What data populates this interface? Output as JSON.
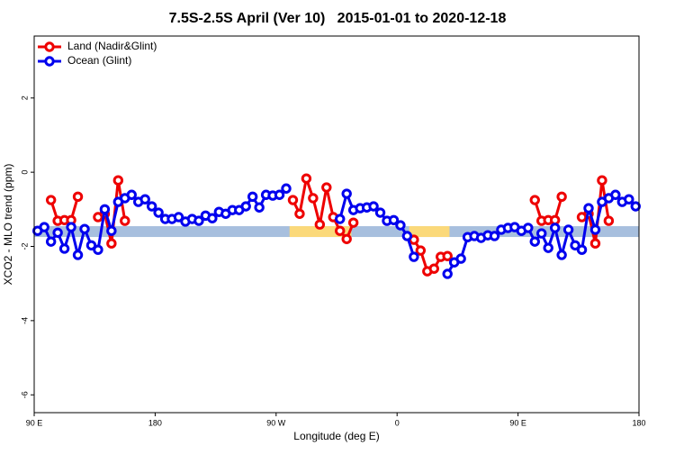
{
  "chart_data": {
    "type": "line",
    "title": "7.5S-2.5S April (Ver 10)   2015-01-01 to 2020-12-18",
    "x_label": "Longitude (deg E)",
    "y_label": "XCO2 - MLO trend (ppm)",
    "xlim": [
      90,
      540
    ],
    "ylim": [
      -6.48,
      3.67
    ],
    "xticks": [
      {
        "value": 90,
        "label": "90 E"
      },
      180,
      {
        "value": 270,
        "label": "90 W"
      },
      {
        "value": 360,
        "label": "0"
      },
      {
        "value": 450,
        "label": "90 E"
      },
      {
        "value": 540,
        "label": "180"
      }
    ],
    "yticks": [
      -6,
      -4,
      -2,
      0,
      2
    ],
    "legend": "top-left",
    "band_y": -1.6,
    "band_segments": [
      {
        "from": 90,
        "to": 540,
        "color": "#a7bfde"
      },
      {
        "from": 280,
        "to": 326,
        "color": "#fbd97a"
      },
      {
        "from": 369,
        "to": 399,
        "color": "#fbd97a"
      }
    ],
    "x": [
      92.5,
      97.5,
      102.5,
      107.5,
      112.5,
      117.5,
      122.5,
      127.5,
      132.5,
      137.5,
      142.5,
      147.5,
      152.5,
      157.5,
      162.5,
      167.5,
      172.5,
      177.5,
      182.5,
      187.5,
      192.5,
      197.5,
      202.5,
      207.5,
      212.5,
      217.5,
      222.5,
      227.5,
      232.5,
      237.5,
      242.5,
      247.5,
      252.5,
      257.5,
      262.5,
      267.5,
      272.5,
      277.5,
      282.5,
      287.5,
      292.5,
      297.5,
      302.5,
      307.5,
      312.5,
      317.5,
      322.5,
      327.5,
      332.5,
      337.5,
      342.5,
      347.5,
      352.5,
      357.5,
      362.5,
      367.5,
      372.5,
      377.5,
      382.5,
      387.5,
      392.5,
      397.5,
      402.5,
      407.5,
      412.5,
      417.5,
      422.5,
      427.5,
      432.5,
      437.5,
      442.5,
      447.5,
      452.5,
      457.5,
      462.5,
      467.5,
      472.5,
      477.5,
      482.5,
      487.5,
      492.5,
      497.5,
      502.5,
      507.5,
      512.5,
      517.5,
      522.5,
      527.5,
      532.5,
      537.5
    ],
    "series": [
      {
        "name": "Land (Nadir&Glint)",
        "color": "#ee0000",
        "values": [
          null,
          null,
          -0.75,
          -1.31,
          -1.29,
          -1.29,
          -0.66,
          null,
          null,
          -1.21,
          -1.12,
          -1.92,
          -0.22,
          -1.31,
          null,
          null,
          null,
          null,
          null,
          null,
          null,
          null,
          null,
          null,
          null,
          null,
          null,
          null,
          null,
          null,
          null,
          null,
          null,
          null,
          null,
          null,
          null,
          null,
          -0.75,
          -1.12,
          -0.17,
          -0.7,
          -1.41,
          -0.41,
          -1.21,
          -1.58,
          -1.8,
          -1.36,
          null,
          null,
          null,
          null,
          null,
          null,
          null,
          null,
          -1.82,
          -2.11,
          -2.67,
          -2.6,
          -2.28,
          -2.26,
          null,
          null,
          null,
          null,
          null,
          null,
          null,
          null,
          null,
          null,
          null,
          null,
          -0.75,
          -1.31,
          -1.29,
          -1.29,
          -0.66,
          null,
          null,
          -1.21,
          -1.12,
          -1.92,
          -0.22,
          -1.31,
          null,
          null,
          null,
          null
        ]
      },
      {
        "name": "Ocean (Glint)",
        "color": "#0000ee",
        "values": [
          -1.58,
          -1.48,
          -1.87,
          -1.63,
          -2.06,
          -1.48,
          -2.23,
          -1.53,
          -1.97,
          -2.09,
          -1.0,
          -1.58,
          -0.8,
          -0.7,
          -0.61,
          -0.8,
          -0.73,
          -0.92,
          -1.09,
          -1.26,
          -1.26,
          -1.21,
          -1.33,
          -1.26,
          -1.31,
          -1.17,
          -1.24,
          -1.07,
          -1.12,
          -1.02,
          -1.02,
          -0.92,
          -0.66,
          -0.95,
          -0.61,
          -0.63,
          -0.61,
          -0.44,
          null,
          null,
          null,
          null,
          null,
          null,
          null,
          -1.26,
          -0.58,
          -1.02,
          -0.97,
          -0.95,
          -0.92,
          -1.09,
          -1.31,
          -1.29,
          -1.43,
          -1.72,
          -2.28,
          null,
          null,
          null,
          null,
          -2.74,
          -2.43,
          -2.33,
          -1.75,
          -1.72,
          -1.77,
          -1.7,
          -1.72,
          -1.55,
          -1.5,
          -1.48,
          -1.58,
          -1.5,
          -1.87,
          -1.65,
          -2.04,
          -1.5,
          -2.23,
          -1.55,
          -1.97,
          -2.09,
          -0.97,
          -1.55,
          -0.8,
          -0.7,
          -0.61,
          -0.8,
          -0.73,
          -0.92
        ]
      }
    ]
  }
}
